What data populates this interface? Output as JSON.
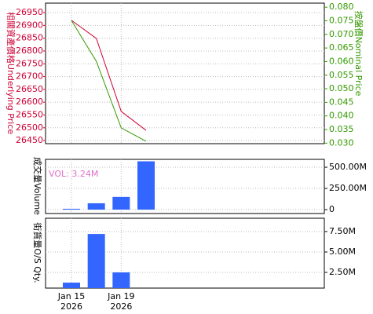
{
  "chart_data": [
    {
      "type": "line",
      "title": "相關資產價格Underlying Price",
      "y2_title": "按盤價Nominal Price",
      "series": [
        {
          "name": "相關資產價格Underlying Price",
          "color": "#cc0033",
          "values": [
            26920,
            26849,
            26564,
            26490
          ]
        },
        {
          "name": "按盤價Nominal Price",
          "color": "#339900",
          "axis": "y2",
          "values": [
            0.0751,
            0.0601,
            0.0356,
            0.0307
          ]
        }
      ],
      "ylim": [
        26438,
        26987
      ],
      "yticks": [
        26450,
        26500,
        26550,
        26600,
        26650,
        26700,
        26750,
        26800,
        26850,
        26900,
        26950
      ],
      "y2lim": [
        0.0298,
        0.0815
      ],
      "y2ticks": [
        {
          "value": 0.03,
          "label": "0.030"
        },
        0.035,
        {
          "value": 0.04,
          "label": "0.040"
        },
        0.045,
        {
          "value": 0.05,
          "label": "0.050"
        },
        0.055,
        {
          "value": 0.06,
          "label": "0.060"
        },
        0.065,
        {
          "value": 0.07,
          "label": "0.070"
        },
        0.075,
        {
          "value": 0.08,
          "label": "0.080"
        }
      ],
      "grid": true
    },
    {
      "type": "bar",
      "title": "成交量Volume",
      "annotation": "VOL: 3.24M",
      "color": "#3366ff",
      "values": [
        10000000,
        75000000,
        150000000,
        570000000
      ],
      "ylim": [
        -46000000,
        593000000
      ],
      "yticks": [
        0,
        {
          "value": 250000000,
          "label": "250.00M"
        },
        {
          "value": 500000000,
          "label": "500.00M"
        }
      ],
      "grid": true
    },
    {
      "type": "bar",
      "title": "街貨量O/S Qty.",
      "color": "#3366ff",
      "categories": [
        "Jan 15\n2026",
        null,
        "Jan 19\n2026",
        null
      ],
      "values": [
        1250000,
        7200000,
        2500000,
        null
      ],
      "ylim": [
        580000,
        9130000
      ],
      "yticks": [
        {
          "value": 2500000,
          "label": "2.50M"
        },
        {
          "value": 5000000,
          "label": "5.00M"
        },
        {
          "value": 7500000,
          "label": "7.50M"
        }
      ],
      "grid": true
    }
  ]
}
